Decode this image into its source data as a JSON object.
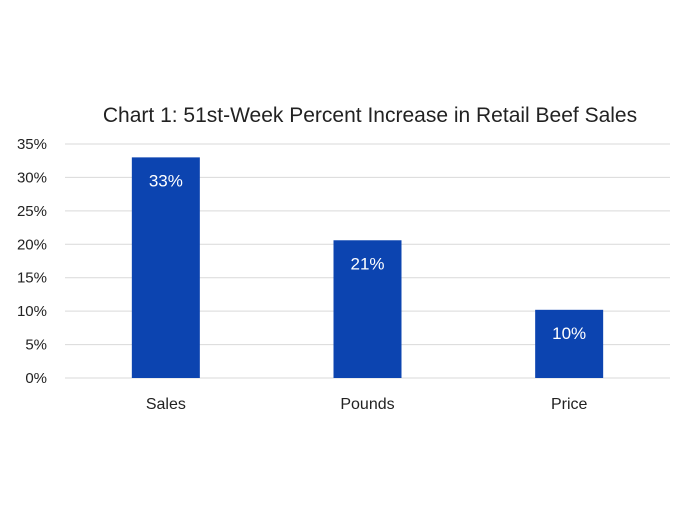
{
  "chart_data": {
    "type": "bar",
    "title": "Chart 1: 51st-Week Percent Increase in Retail Beef Sales",
    "categories": [
      "Sales",
      "Pounds",
      "Price"
    ],
    "values": [
      33,
      20.6,
      10.2
    ],
    "data_labels": [
      "33%",
      "21%",
      "10%"
    ],
    "ylim": [
      0,
      35
    ],
    "yticks": [
      0,
      5,
      10,
      15,
      20,
      25,
      30,
      35
    ],
    "ytick_labels": [
      "0%",
      "5%",
      "10%",
      "15%",
      "20%",
      "25%",
      "30%",
      "35%"
    ],
    "grid": true,
    "legend": "none",
    "bar_color": "#0c44b0"
  }
}
